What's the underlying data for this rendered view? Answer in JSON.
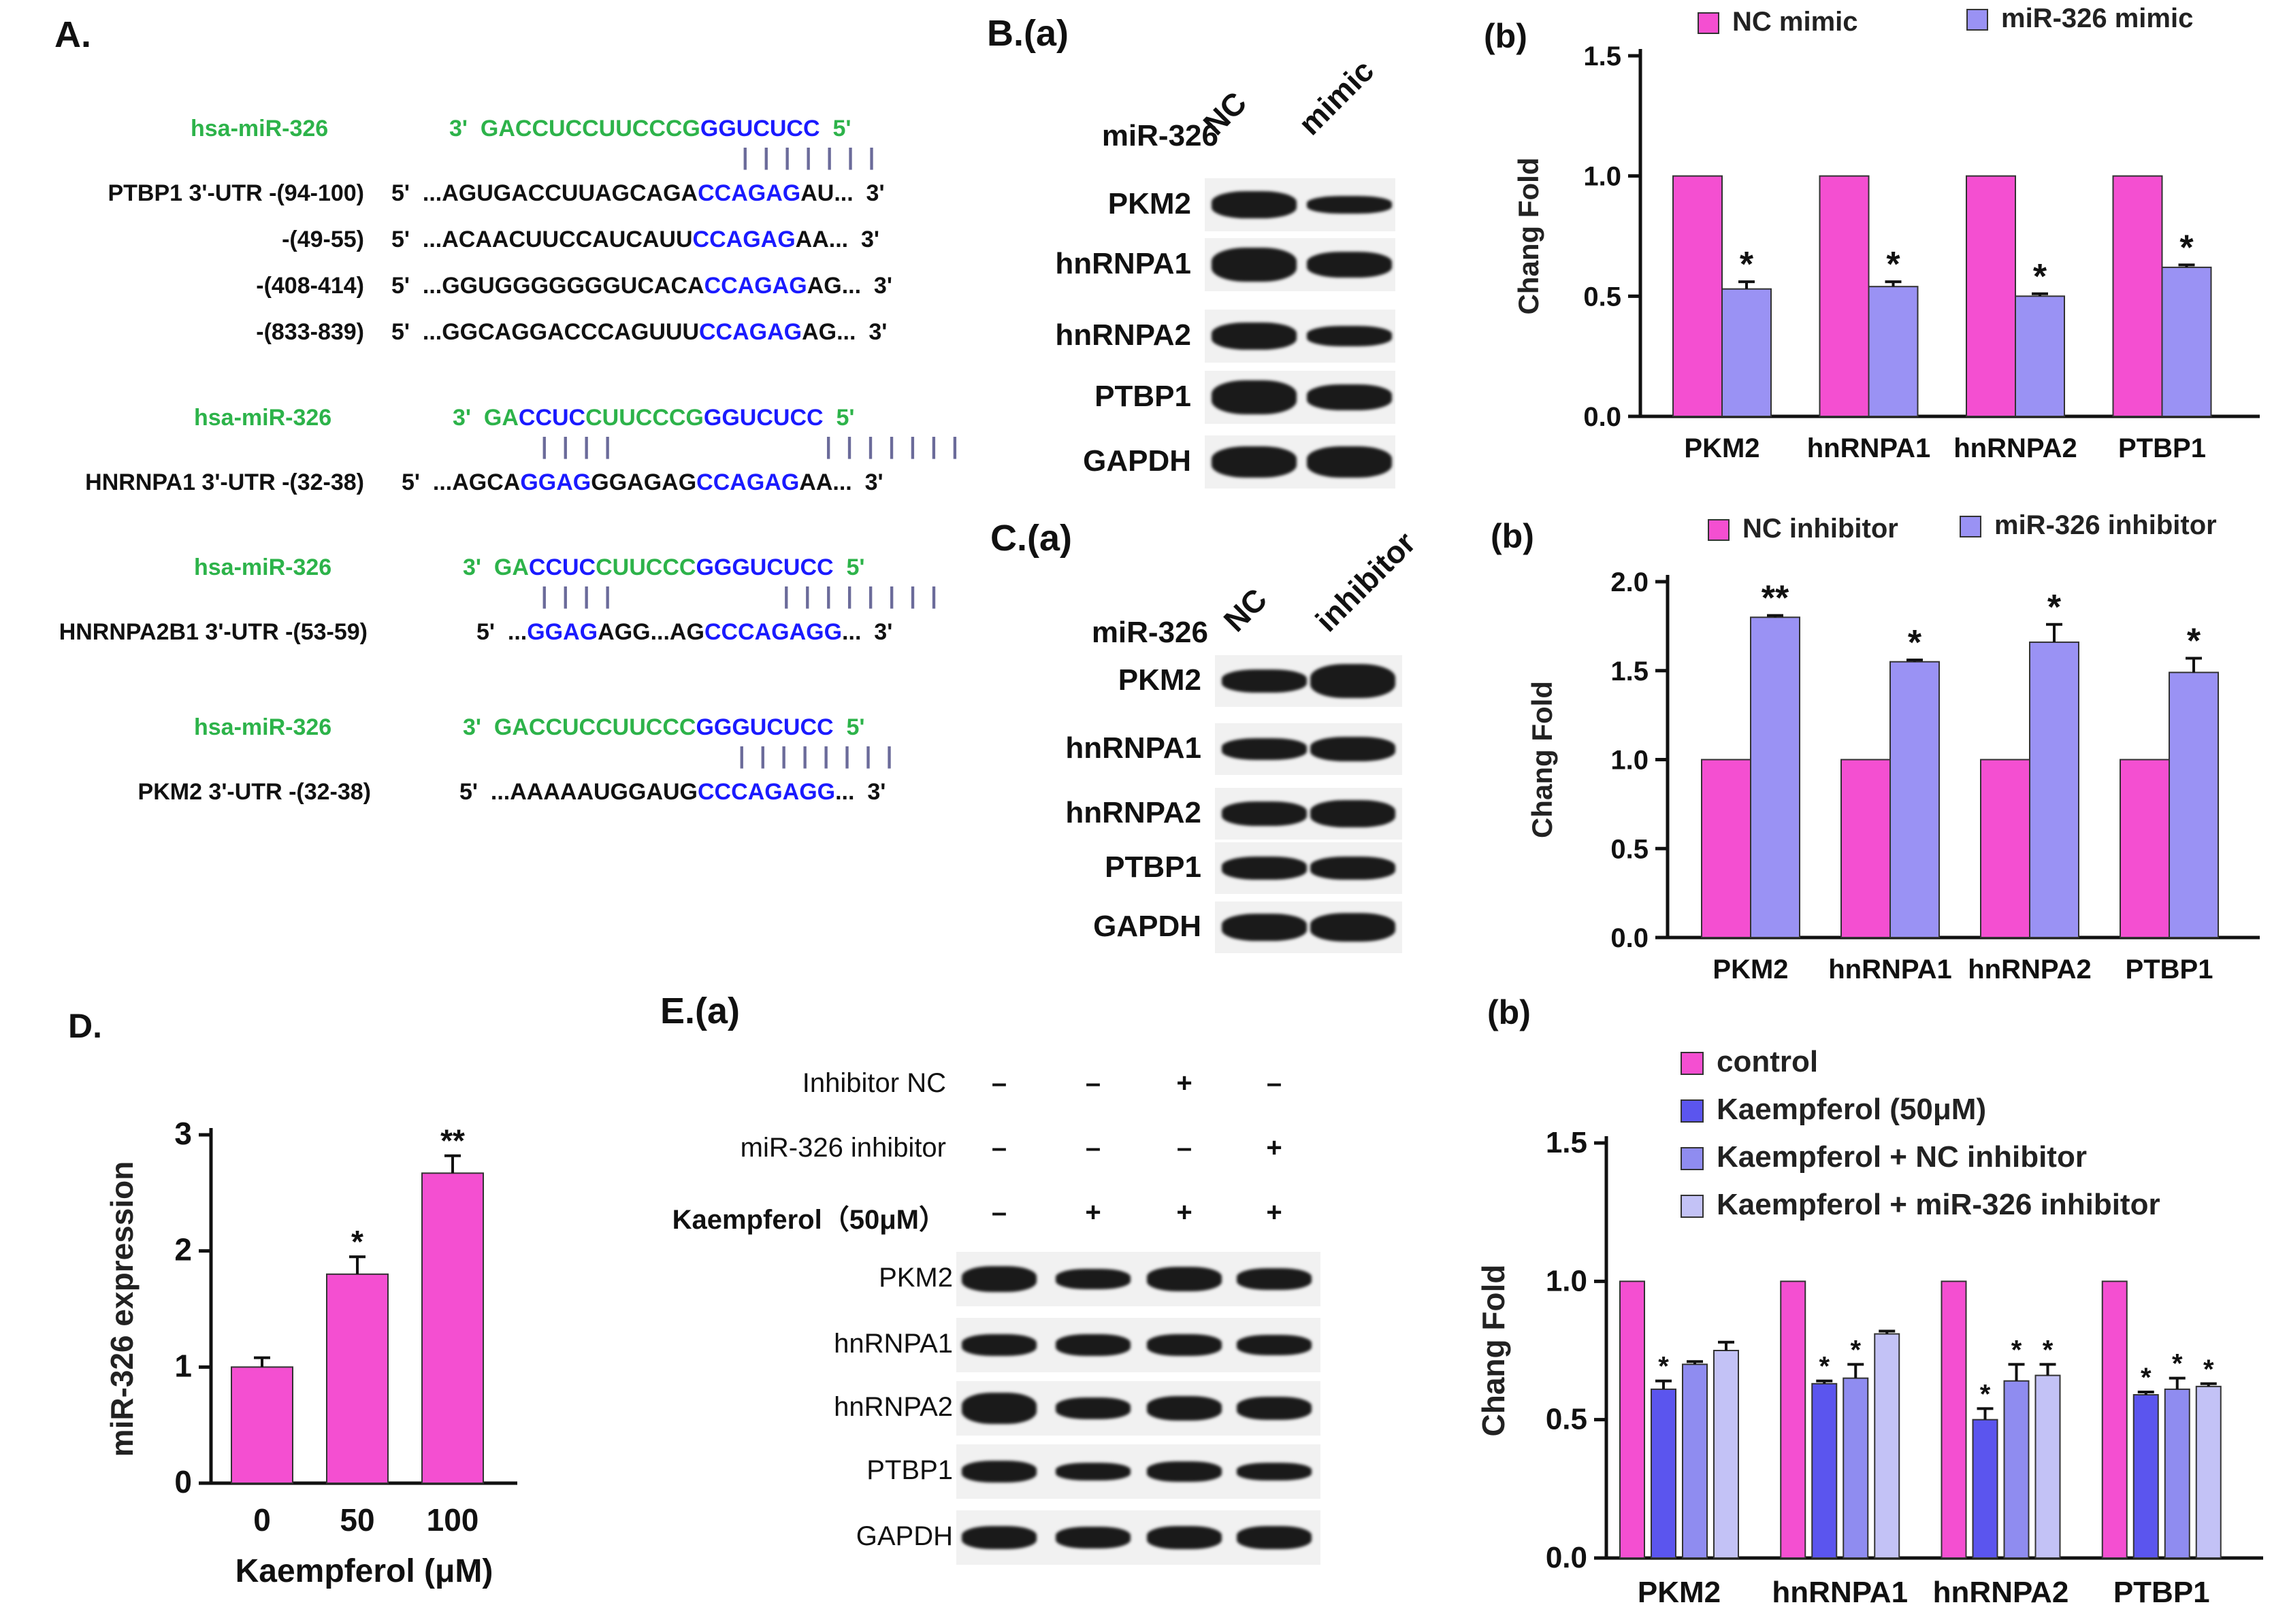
{
  "panelA": {
    "label": "A.",
    "blocks": [
      {
        "mirna_name": "hsa-miR-326",
        "mirna_seq": [
          [
            "3'  GACCUCCUUCCCG",
            "g"
          ],
          [
            "GGUCUCC",
            "b"
          ],
          [
            "  5'",
            "g"
          ]
        ],
        "pairing": "| | | | | | |",
        "targets": [
          {
            "name": "PTBP1 3'-UTR -(94-100)",
            "seq": [
              [
                "5'  ...AGUGACCUUAGCAGA",
                "k"
              ],
              [
                "CCAGAG",
                "b"
              ],
              [
                "AU...  3'",
                "k"
              ]
            ]
          },
          {
            "name": "-(49-55)",
            "seq": [
              [
                "5'  ...ACAACUUCCAUCAUU",
                "k"
              ],
              [
                "CCAGAG",
                "b"
              ],
              [
                "AA...  3'",
                "k"
              ]
            ]
          },
          {
            "name": "-(408-414)",
            "seq": [
              [
                "5'  ...GGUGGGGGGGUCACA",
                "k"
              ],
              [
                "CCAGAG",
                "b"
              ],
              [
                "AG...  3'",
                "k"
              ]
            ]
          },
          {
            "name": "-(833-839)",
            "seq": [
              [
                "5'  ...GGCAGGACCCAGUUU",
                "k"
              ],
              [
                "CCAGAG",
                "b"
              ],
              [
                "AG...  3'",
                "k"
              ]
            ]
          }
        ]
      },
      {
        "mirna_name": "hsa-miR-326",
        "mirna_seq": [
          [
            "3'  GA",
            "g"
          ],
          [
            "CCUC",
            "b"
          ],
          [
            "CUUCCCG",
            "g"
          ],
          [
            "GGUCUCC",
            "b"
          ],
          [
            "  5'",
            "g"
          ]
        ],
        "pairing": "| | | |                    | | | | | | |",
        "targets": [
          {
            "name": "HNRNPA1 3'-UTR -(32-38)",
            "seq": [
              [
                "5'  ...AGCA",
                "k"
              ],
              [
                "GGAG",
                "b"
              ],
              [
                "GGAGAG",
                "k"
              ],
              [
                "CCAGAG",
                "b"
              ],
              [
                "AA...  3'",
                "k"
              ]
            ]
          }
        ]
      },
      {
        "mirna_name": "hsa-miR-326",
        "mirna_seq": [
          [
            "3'  GA",
            "g"
          ],
          [
            "CCUC",
            "b"
          ],
          [
            "CUUCCC",
            "g"
          ],
          [
            "GGGUCUCC",
            "b"
          ],
          [
            "  5'",
            "g"
          ]
        ],
        "pairing": "| | | |                | | | | | | | |",
        "targets": [
          {
            "name": "HNRNPA2B1 3'-UTR -(53-59)",
            "seq": [
              [
                "5'  ...",
                "k"
              ],
              [
                "GGAG",
                "b"
              ],
              [
                "AGG...AG",
                "k"
              ],
              [
                "CCCAGAGG",
                "b"
              ],
              [
                "...  3'",
                "k"
              ]
            ]
          }
        ]
      },
      {
        "mirna_name": "hsa-miR-326",
        "mirna_seq": [
          [
            "3'  GACCUCCUUCCC",
            "g"
          ],
          [
            "GGGUCUCC",
            "b"
          ],
          [
            "  5'",
            "g"
          ]
        ],
        "pairing": "| | | | | | | |",
        "targets": [
          {
            "name": "PKM2 3'-UTR -(32-38)",
            "seq": [
              [
                "5'  ...AAAAAUGGAUG",
                "k"
              ],
              [
                "CCCAGAGG",
                "b"
              ],
              [
                "...  3'",
                "k"
              ]
            ]
          }
        ]
      }
    ]
  },
  "panelBa": {
    "label": "B.(a)",
    "row_header": "miR-326",
    "lanes": [
      "NC",
      "mimic"
    ],
    "proteins": [
      "PKM2",
      "hnRNPA1",
      "hnRNPA2",
      "PTBP1",
      "GAPDH"
    ]
  },
  "panelCa": {
    "label": "C.(a)",
    "row_header": "miR-326",
    "lanes": [
      "NC",
      "inhibitor"
    ],
    "proteins": [
      "PKM2",
      "hnRNPA1",
      "hnRNPA2",
      "PTBP1",
      "GAPDH"
    ]
  },
  "panelEa": {
    "label": "E.(a)",
    "conditions": [
      {
        "name": "Inhibitor NC",
        "signs": [
          "–",
          "–",
          "+",
          "–"
        ]
      },
      {
        "name": "miR-326 inhibitor",
        "signs": [
          "–",
          "–",
          "–",
          "+"
        ]
      },
      {
        "name": "Kaempferol（50μM）",
        "signs": [
          "–",
          "+",
          "+",
          "+"
        ]
      }
    ],
    "proteins": [
      "PKM2",
      "hnRNPA1",
      "hnRNPA2",
      "PTBP1",
      "GAPDH"
    ]
  },
  "colors": {
    "magenta": "#f44fd1",
    "lavender": "#9a92f4",
    "blue": "#5b55ee",
    "lightblue": "#8f8cf0",
    "paleblue": "#c3c2f6",
    "green_text": "#2db34a",
    "blue_text": "#1a1aff"
  },
  "chart_data": [
    {
      "id": "Bb",
      "panel_label": "(b)",
      "type": "bar",
      "ylabel": "Chang Fold",
      "ylim": [
        0,
        1.5
      ],
      "yticks": [
        "0.0",
        "0.5",
        "1.0",
        "1.5"
      ],
      "categories": [
        "PKM2",
        "hnRNPA1",
        "hnRNPA2",
        "PTBP1"
      ],
      "series": [
        {
          "name": "NC mimic",
          "color": "#f44fd1",
          "values": [
            1.0,
            1.0,
            1.0,
            1.0
          ],
          "errors": [
            0,
            0,
            0,
            0
          ],
          "sig": [
            "",
            "",
            "",
            ""
          ]
        },
        {
          "name": "miR-326 mimic",
          "color": "#9a92f4",
          "values": [
            0.53,
            0.54,
            0.5,
            0.62
          ],
          "errors": [
            0.03,
            0.02,
            0.01,
            0.01
          ],
          "sig": [
            "*",
            "*",
            "*",
            "*"
          ]
        }
      ],
      "legend": "top"
    },
    {
      "id": "Cb",
      "panel_label": "(b)",
      "type": "bar",
      "ylabel": "Chang Fold",
      "ylim": [
        0,
        2.0
      ],
      "yticks": [
        "0.0",
        "0.5",
        "1.0",
        "1.5",
        "2.0"
      ],
      "categories": [
        "PKM2",
        "hnRNPA1",
        "hnRNPA2",
        "PTBP1"
      ],
      "series": [
        {
          "name": "NC inhibitor",
          "color": "#f44fd1",
          "values": [
            1.0,
            1.0,
            1.0,
            1.0
          ],
          "errors": [
            0,
            0,
            0,
            0
          ],
          "sig": [
            "",
            "",
            "",
            ""
          ]
        },
        {
          "name": "miR-326 inhibitor",
          "color": "#9a92f4",
          "values": [
            1.8,
            1.55,
            1.66,
            1.49
          ],
          "errors": [
            0.01,
            0.01,
            0.1,
            0.08
          ],
          "sig": [
            "**",
            "*",
            "*",
            "*"
          ]
        }
      ],
      "legend": "top"
    },
    {
      "id": "D",
      "panel_label": "D.",
      "type": "bar",
      "ylabel": "miR-326 expression",
      "xlabel": "Kaempferol (μM)",
      "ylim": [
        0,
        3
      ],
      "yticks": [
        "0",
        "1",
        "2",
        "3"
      ],
      "categories": [
        "0",
        "50",
        "100"
      ],
      "series": [
        {
          "name": "",
          "color": "#f44fd1",
          "values": [
            1.0,
            1.8,
            2.67
          ],
          "errors": [
            0.08,
            0.15,
            0.15
          ],
          "sig": [
            "",
            "*",
            "**"
          ]
        }
      ]
    },
    {
      "id": "Eb",
      "panel_label": "(b)",
      "type": "bar",
      "ylabel": "Chang Fold",
      "ylim": [
        0,
        1.5
      ],
      "yticks": [
        "0.0",
        "0.5",
        "1.0",
        "1.5"
      ],
      "categories": [
        "PKM2",
        "hnRNPA1",
        "hnRNPA2",
        "PTBP1"
      ],
      "series": [
        {
          "name": "control",
          "color": "#f44fd1",
          "values": [
            1.0,
            1.0,
            1.0,
            1.0
          ],
          "errors": [
            0,
            0,
            0,
            0
          ],
          "sig": [
            "",
            "",
            "",
            ""
          ]
        },
        {
          "name": "Kaempferol (50μM)",
          "color": "#5b55ee",
          "values": [
            0.61,
            0.63,
            0.5,
            0.59
          ],
          "errors": [
            0.03,
            0.01,
            0.04,
            0.01
          ],
          "sig": [
            "*",
            "*",
            "*",
            "*"
          ]
        },
        {
          "name": "Kaempferol + NC inhibitor",
          "color": "#8f8cf0",
          "values": [
            0.7,
            0.65,
            0.64,
            0.61
          ],
          "errors": [
            0.01,
            0.05,
            0.06,
            0.04
          ],
          "sig": [
            "",
            "*",
            "*",
            "*"
          ]
        },
        {
          "name": "Kaempferol + miR-326 inhibitor",
          "color": "#c3c2f6",
          "values": [
            0.75,
            0.81,
            0.66,
            0.62
          ],
          "errors": [
            0.03,
            0.01,
            0.04,
            0.01
          ],
          "sig": [
            "",
            "",
            "*",
            "*"
          ]
        }
      ],
      "legend": "top"
    }
  ]
}
